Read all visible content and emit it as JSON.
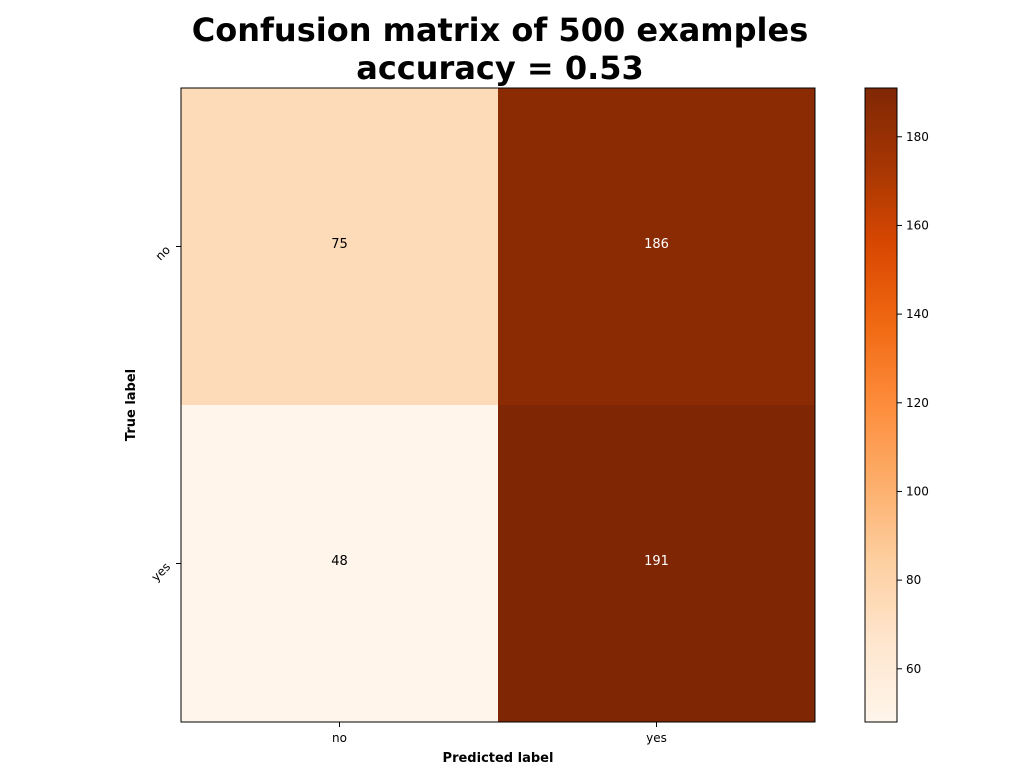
{
  "chart_data": {
    "type": "heatmap",
    "title": [
      "Confusion matrix of 500 examples",
      "accuracy = 0.53"
    ],
    "xlabel": "Predicted label",
    "ylabel": "True label",
    "x_categories": [
      "no",
      "yes"
    ],
    "y_categories": [
      "no",
      "yes"
    ],
    "matrix": [
      [
        75,
        186
      ],
      [
        48,
        191
      ]
    ],
    "colormap": "Oranges",
    "value_range": [
      48,
      191
    ],
    "colorbar": {
      "ticks": [
        60,
        80,
        100,
        120,
        140,
        160,
        180
      ],
      "tick_labels": [
        "60",
        "80",
        "100",
        "120",
        "140",
        "160",
        "180"
      ],
      "position": "right"
    },
    "colors": {
      "low": "#fff5eb",
      "high": "#7f2704",
      "text_dark": "#000000",
      "text_light": "#ffffff"
    }
  }
}
